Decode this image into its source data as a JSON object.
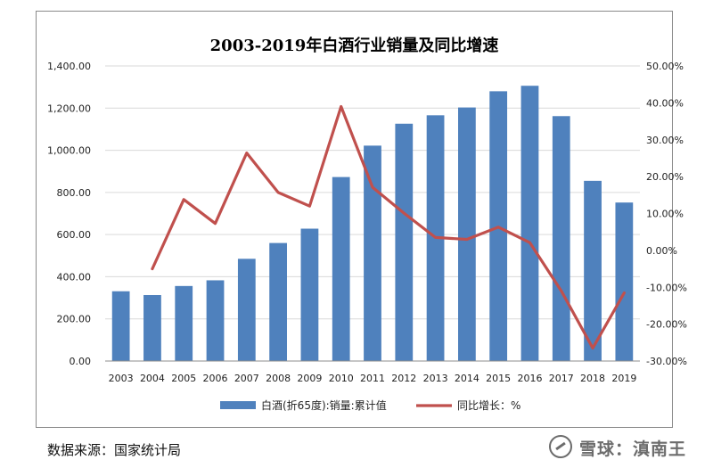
{
  "chart_data": {
    "type": "bar+line",
    "title": "2003-2019年白酒行业销量及同比增速",
    "categories": [
      "2003",
      "2004",
      "2005",
      "2006",
      "2007",
      "2008",
      "2009",
      "2010",
      "2011",
      "2012",
      "2013",
      "2014",
      "2015",
      "2016",
      "2017",
      "2018",
      "2019"
    ],
    "series": [
      {
        "name": "白酒(折65度):销量:累计值",
        "type": "bar",
        "axis": "left",
        "color": "#4f81bd",
        "values": [
          331,
          313,
          356,
          383,
          485,
          560,
          628,
          873,
          1022,
          1126,
          1166,
          1203,
          1280,
          1306,
          1162,
          855,
          752
        ]
      },
      {
        "name": "同比增长：%",
        "type": "line",
        "axis": "right",
        "color": "#c0504d",
        "values": [
          null,
          -5.0,
          13.8,
          7.3,
          26.4,
          15.7,
          12.0,
          39.0,
          17.1,
          10.1,
          3.5,
          3.0,
          6.3,
          2.1,
          -11.0,
          -26.5,
          -11.5
        ]
      }
    ],
    "y_left": {
      "min": 0,
      "max": 1400,
      "step": 200,
      "ticks": [
        "0.00",
        "200.00",
        "400.00",
        "600.00",
        "800.00",
        "1,000.00",
        "1,200.00",
        "1,400.00"
      ]
    },
    "y_right": {
      "min": -30,
      "max": 50,
      "step": 10,
      "ticks": [
        "-30.00%",
        "-20.00%",
        "-10.00%",
        "0.00%",
        "10.00%",
        "20.00%",
        "30.00%",
        "40.00%",
        "50.00%"
      ]
    },
    "legend": {
      "position": "bottom",
      "items": [
        "白酒(折65度):销量:累计值",
        "同比增长：%"
      ]
    }
  },
  "source": "数据来源：国家统计局",
  "watermark": "雪球：滇南王"
}
